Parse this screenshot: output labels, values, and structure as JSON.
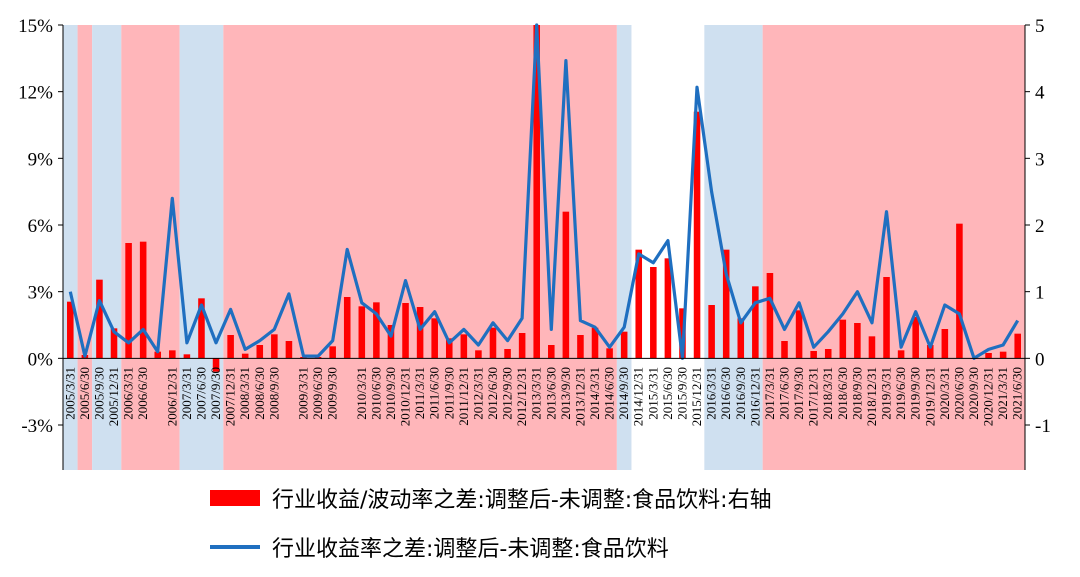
{
  "chart_data": {
    "type": "bar+line",
    "x": [
      "2005/3/31",
      "2005/6/30",
      "2005/9/30",
      "2005/12/31",
      "2006/3/31",
      "2006/6/30",
      "2006/9/30",
      "2006/12/31",
      "2007/3/31",
      "2007/6/30",
      "2007/9/30",
      "2007/12/31",
      "2008/3/31",
      "2008/6/30",
      "2008/9/30",
      "2008/12/31",
      "2009/3/31",
      "2009/6/30",
      "2009/9/30",
      "2009/12/31",
      "2010/3/31",
      "2010/6/30",
      "2010/9/30",
      "2010/12/31",
      "2011/3/31",
      "2011/6/30",
      "2011/9/30",
      "2011/12/31",
      "2012/3/31",
      "2012/6/30",
      "2012/9/30",
      "2012/12/31",
      "2013/3/31",
      "2013/6/30",
      "2013/9/30",
      "2013/12/31",
      "2014/3/31",
      "2014/6/30",
      "2014/9/30",
      "2014/12/31",
      "2015/3/31",
      "2015/6/30",
      "2015/9/30",
      "2015/12/31",
      "2016/3/31",
      "2016/6/30",
      "2016/9/30",
      "2016/12/31",
      "2017/3/31",
      "2017/6/30",
      "2017/9/30",
      "2017/12/31",
      "2018/3/31",
      "2018/6/30",
      "2018/9/30",
      "2018/12/31",
      "2019/3/31",
      "2019/6/30",
      "2019/9/30",
      "2019/12/31",
      "2020/3/31",
      "2020/6/30",
      "2020/9/30",
      "2020/12/31",
      "2021/3/31",
      "2021/6/30"
    ],
    "x_tick_labels": [
      "2005/3/31",
      "2005/6/30",
      "2005/9/30",
      "2005/12/31",
      "2006/3/31",
      "2006/6/30",
      "2006/12/31",
      "2007/3/31",
      "2007/6/30",
      "2007/9/30",
      "2007/12/31",
      "2008/3/31",
      "2008/6/30",
      "2008/9/30",
      "2009/3/31",
      "2009/6/30",
      "2009/9/30",
      "2010/3/31",
      "2010/6/30",
      "2010/9/30",
      "2010/12/31",
      "2011/3/31",
      "2011/6/30",
      "2011/9/30",
      "2011/12/31",
      "2012/3/31",
      "2012/6/30",
      "2012/9/30",
      "2012/12/31",
      "2013/3/31",
      "2013/6/30",
      "2013/9/30",
      "2013/12/31",
      "2014/3/31",
      "2014/6/30",
      "2014/9/30",
      "2014/12/31",
      "2015/3/31",
      "2015/6/30",
      "2015/9/30",
      "2015/12/31",
      "2016/3/31",
      "2016/6/30",
      "2016/9/30",
      "2016/12/31",
      "2017/3/31",
      "2017/6/30",
      "2017/9/30",
      "2017/12/31",
      "2018/3/31",
      "2018/6/30",
      "2018/9/30",
      "2018/12/31",
      "2019/3/31",
      "2019/6/30",
      "2019/9/30",
      "2019/12/31",
      "2020/3/31",
      "2020/6/30",
      "2020/9/30",
      "2020/12/31",
      "2021/3/31",
      "2021/6/30"
    ],
    "series": [
      {
        "name": "行业收益/波动率之差:调整后-未调整:食品饮料:右轴",
        "type": "bar",
        "axis": "right",
        "color": "#ff0000",
        "values": [
          0.85,
          0.05,
          1.18,
          0.45,
          1.73,
          1.75,
          0.1,
          0.12,
          0.06,
          0.9,
          -0.2,
          0.35,
          0.07,
          0.2,
          0.36,
          0.26,
          0.02,
          0.02,
          0.18,
          0.92,
          0.78,
          0.84,
          0.5,
          0.83,
          0.77,
          0.6,
          0.3,
          0.36,
          0.12,
          0.46,
          0.14,
          0.38,
          5.0,
          0.2,
          2.2,
          0.35,
          0.46,
          0.15,
          0.4,
          1.63,
          1.37,
          1.5,
          0.75,
          3.7,
          0.8,
          1.63,
          0.6,
          1.08,
          1.28,
          0.26,
          0.72,
          0.11,
          0.14,
          0.58,
          0.53,
          0.33,
          1.22,
          0.12,
          0.62,
          0.2,
          0.44,
          2.02,
          0.0,
          0.08,
          0.1,
          0.37
        ]
      },
      {
        "name": "行业收益率之差:调整后-未调整:食品饮料",
        "type": "line",
        "axis": "left",
        "color": "#1f6fc0",
        "values": [
          3.0,
          0.1,
          2.6,
          1.2,
          0.7,
          1.3,
          0.3,
          7.2,
          0.7,
          2.4,
          0.7,
          2.2,
          0.4,
          0.8,
          1.3,
          2.9,
          0.1,
          0.1,
          0.8,
          4.9,
          2.5,
          2.0,
          1.0,
          3.5,
          1.3,
          2.1,
          0.7,
          1.3,
          0.6,
          1.6,
          0.8,
          1.8,
          15.0,
          1.3,
          13.4,
          1.7,
          1.4,
          0.5,
          1.4,
          4.7,
          4.3,
          5.3,
          0.0,
          12.2,
          7.5,
          3.8,
          1.6,
          2.5,
          2.7,
          1.3,
          2.5,
          0.5,
          1.2,
          2.0,
          3.0,
          1.6,
          6.6,
          0.5,
          2.1,
          0.5,
          2.4,
          2.0,
          0.0,
          0.4,
          0.6,
          1.7
        ]
      }
    ],
    "y_left": {
      "ticks": [
        "15%",
        "12%",
        "9%",
        "6%",
        "3%",
        "0%",
        "-3%"
      ],
      "range": [
        -3,
        15
      ],
      "unit": "%"
    },
    "y_right": {
      "ticks": [
        "5",
        "4",
        "3",
        "2",
        "1",
        "0",
        "-1"
      ],
      "range": [
        -1,
        5
      ]
    },
    "regimes": [
      {
        "color": "#cfe0f0",
        "start": "2005/3/31",
        "end": "2005/3/31"
      },
      {
        "color": "#ffb6ba",
        "start": "2005/6/30",
        "end": "2005/6/30"
      },
      {
        "color": "#cfe0f0",
        "start": "2005/9/30",
        "end": "2005/12/31"
      },
      {
        "color": "#ffb6ba",
        "start": "2006/3/31",
        "end": "2006/12/31"
      },
      {
        "color": "#cfe0f0",
        "start": "2007/3/31",
        "end": "2007/9/30"
      },
      {
        "color": "#ffb6ba",
        "start": "2007/12/31",
        "end": "2014/6/30"
      },
      {
        "color": "#cfe0f0",
        "start": "2014/9/30",
        "end": "2014/9/30"
      },
      {
        "color": "#cfe0f0",
        "start": "2016/3/31",
        "end": "2016/12/31"
      },
      {
        "color": "#ffb6ba",
        "start": "2017/3/31",
        "end": "2021/6/30"
      }
    ]
  }
}
